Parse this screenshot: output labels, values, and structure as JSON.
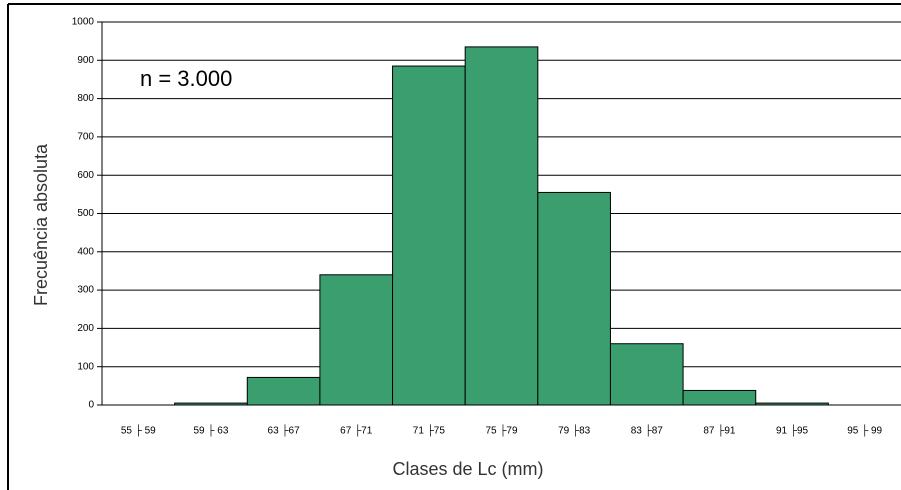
{
  "chart_data": {
    "type": "bar",
    "annotation": "n = 3.000",
    "x_label": "Clases de Lc (mm)",
    "y_label": "Frecuência absoluta",
    "categories": [
      "55 ├ 59",
      "59 ├ 63",
      "63 ├67",
      "67 ├71",
      "71 ├75",
      "75 ├79",
      "79 ├83",
      "83 ├87",
      "87 ├91",
      "91 ├95",
      "95 ├ 99"
    ],
    "values": [
      0,
      5,
      72,
      340,
      885,
      935,
      555,
      160,
      38,
      5,
      0
    ],
    "color": "#3a9e6e",
    "ylim": [
      0,
      1000
    ],
    "yticks": [
      0,
      100,
      200,
      300,
      400,
      500,
      600,
      700,
      800,
      900,
      1000
    ],
    "grid": true
  }
}
